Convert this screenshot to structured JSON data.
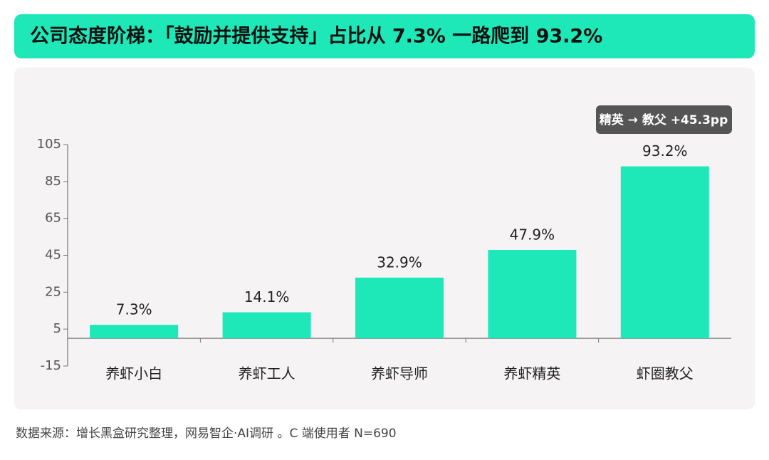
{
  "chart_data": {
    "type": "bar",
    "title": "公司态度阶梯：「鼓励并提供支持」占比从 7.3% 一路爬到 93.2%",
    "categories": [
      "养虾小白",
      "养虾工人",
      "养虾导师",
      "养虾精英",
      "虾圈教父"
    ],
    "values": [
      7.3,
      14.1,
      32.9,
      47.9,
      93.2
    ],
    "value_labels": [
      "7.3%",
      "14.1%",
      "32.9%",
      "47.9%",
      "93.2%"
    ],
    "color": "#1ee8b8",
    "ylim": [
      -15,
      105
    ],
    "yticks": [
      -15,
      5,
      25,
      45,
      65,
      85,
      105
    ],
    "annotation": "精英 → 教父  +45.3pp",
    "source": "数据来源：增长黑盒研究整理，网易智企·AI调研 。C 端使用者 N=690"
  }
}
